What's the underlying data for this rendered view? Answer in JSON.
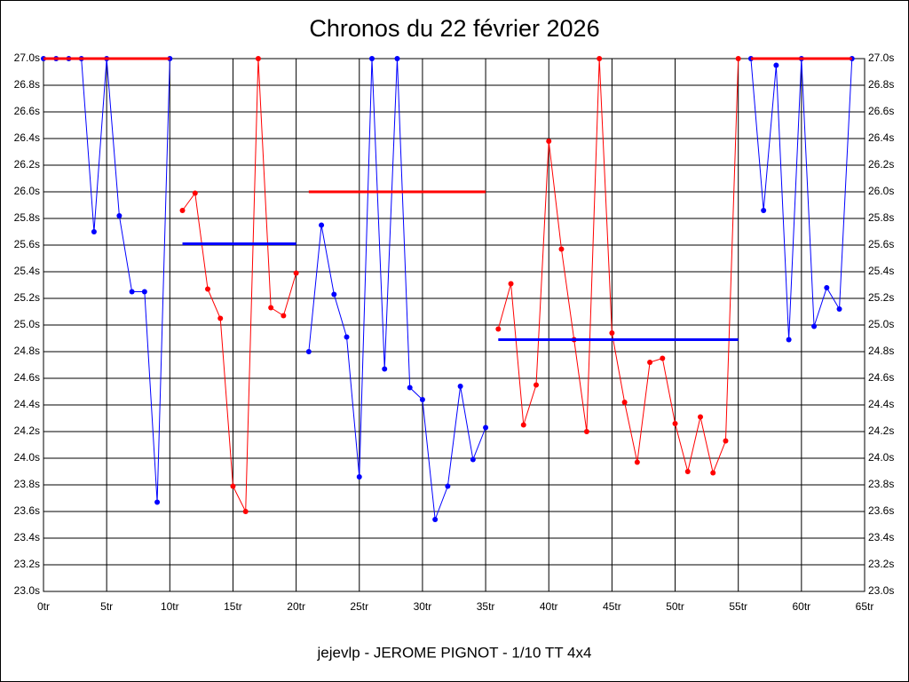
{
  "chart_data": {
    "type": "line",
    "title": "Chronos du 22 février 2026",
    "subtitle": "jejevlp - JEROME PIGNOT - 1/10 TT 4x4",
    "grid": true,
    "xlim": [
      0,
      65
    ],
    "ylim": [
      23.0,
      27.0
    ],
    "xticks": [
      {
        "value": 0,
        "label": "0tr"
      },
      {
        "value": 5,
        "label": "5tr"
      },
      {
        "value": 10,
        "label": "10tr"
      },
      {
        "value": 15,
        "label": "15tr"
      },
      {
        "value": 20,
        "label": "20tr"
      },
      {
        "value": 25,
        "label": "25tr"
      },
      {
        "value": 30,
        "label": "30tr"
      },
      {
        "value": 35,
        "label": "35tr"
      },
      {
        "value": 40,
        "label": "40tr"
      },
      {
        "value": 45,
        "label": "45tr"
      },
      {
        "value": 50,
        "label": "50tr"
      },
      {
        "value": 55,
        "label": "55tr"
      },
      {
        "value": 60,
        "label": "60tr"
      },
      {
        "value": 65,
        "label": "65tr"
      }
    ],
    "yticks": [
      {
        "value": 23.0,
        "label": "23.0s"
      },
      {
        "value": 23.2,
        "label": "23.2s"
      },
      {
        "value": 23.4,
        "label": "23.4s"
      },
      {
        "value": 23.6,
        "label": "23.6s"
      },
      {
        "value": 23.8,
        "label": "23.8s"
      },
      {
        "value": 24.0,
        "label": "24.0s"
      },
      {
        "value": 24.2,
        "label": "24.2s"
      },
      {
        "value": 24.4,
        "label": "24.4s"
      },
      {
        "value": 24.6,
        "label": "24.6s"
      },
      {
        "value": 24.8,
        "label": "24.8s"
      },
      {
        "value": 25.0,
        "label": "25.0s"
      },
      {
        "value": 25.2,
        "label": "25.2s"
      },
      {
        "value": 25.4,
        "label": "25.4s"
      },
      {
        "value": 25.6,
        "label": "25.6s"
      },
      {
        "value": 25.8,
        "label": "25.8s"
      },
      {
        "value": 26.0,
        "label": "26.0s"
      },
      {
        "value": 26.2,
        "label": "26.2s"
      },
      {
        "value": 26.4,
        "label": "26.4s"
      },
      {
        "value": 26.6,
        "label": "26.6s"
      },
      {
        "value": 26.8,
        "label": "26.8s"
      },
      {
        "value": 27.0,
        "label": "27.0s"
      }
    ],
    "series": [
      {
        "color": "#0000ff",
        "markers": true,
        "line_width": 1,
        "x": [
          0,
          1,
          2,
          3,
          4,
          5,
          6,
          7,
          8,
          9,
          10
        ],
        "values": [
          27.0,
          27.0,
          27.0,
          27.0,
          25.7,
          27.0,
          25.82,
          25.25,
          25.25,
          23.67,
          27.0
        ]
      },
      {
        "color": "#ff0000",
        "markers": true,
        "line_width": 1,
        "x": [
          11,
          12,
          13,
          14,
          15,
          16,
          17,
          18,
          19,
          20
        ],
        "values": [
          25.86,
          25.99,
          25.27,
          25.05,
          23.79,
          23.6,
          27.0,
          25.13,
          25.07,
          25.39
        ]
      },
      {
        "color": "#0000ff",
        "markers": true,
        "line_width": 1,
        "x": [
          21,
          22,
          23,
          24,
          25,
          26,
          27,
          28,
          29,
          30,
          31,
          32,
          33,
          34,
          35
        ],
        "values": [
          24.8,
          25.75,
          25.23,
          24.91,
          23.86,
          27.0,
          24.67,
          27.0,
          24.53,
          24.44,
          23.54,
          23.79,
          24.54,
          23.99,
          24.23
        ]
      },
      {
        "color": "#ff0000",
        "markers": true,
        "line_width": 1,
        "x": [
          36,
          37,
          38,
          39,
          40,
          41,
          42,
          43,
          44,
          45,
          46,
          47,
          48,
          49,
          50,
          51,
          52,
          53,
          54,
          55
        ],
        "values": [
          24.97,
          25.31,
          24.25,
          24.55,
          26.38,
          25.57,
          24.89,
          24.2,
          27.0,
          24.94,
          24.42,
          23.97,
          24.72,
          24.75,
          24.26,
          23.9,
          24.31,
          23.89,
          24.13,
          27.0
        ]
      },
      {
        "color": "#0000ff",
        "markers": true,
        "line_width": 1,
        "x": [
          56,
          57,
          58,
          59,
          60,
          61,
          62,
          63,
          64
        ],
        "values": [
          27.0,
          25.86,
          26.95,
          24.89,
          27.0,
          24.99,
          25.28,
          25.12,
          27.0
        ]
      },
      {
        "color": "#ff0000",
        "markers": false,
        "line_width": 3,
        "x": [
          0,
          10
        ],
        "values": [
          27.0,
          27.0
        ]
      },
      {
        "color": "#0000ff",
        "markers": false,
        "line_width": 3,
        "x": [
          11,
          20
        ],
        "values": [
          25.61,
          25.61
        ]
      },
      {
        "color": "#ff0000",
        "markers": false,
        "line_width": 3,
        "x": [
          21,
          35
        ],
        "values": [
          26.0,
          26.0
        ]
      },
      {
        "color": "#0000ff",
        "markers": false,
        "line_width": 3,
        "x": [
          36,
          55
        ],
        "values": [
          24.89,
          24.89
        ]
      },
      {
        "color": "#ff0000",
        "markers": false,
        "line_width": 3,
        "x": [
          56,
          64
        ],
        "values": [
          27.0,
          27.0
        ]
      }
    ]
  }
}
